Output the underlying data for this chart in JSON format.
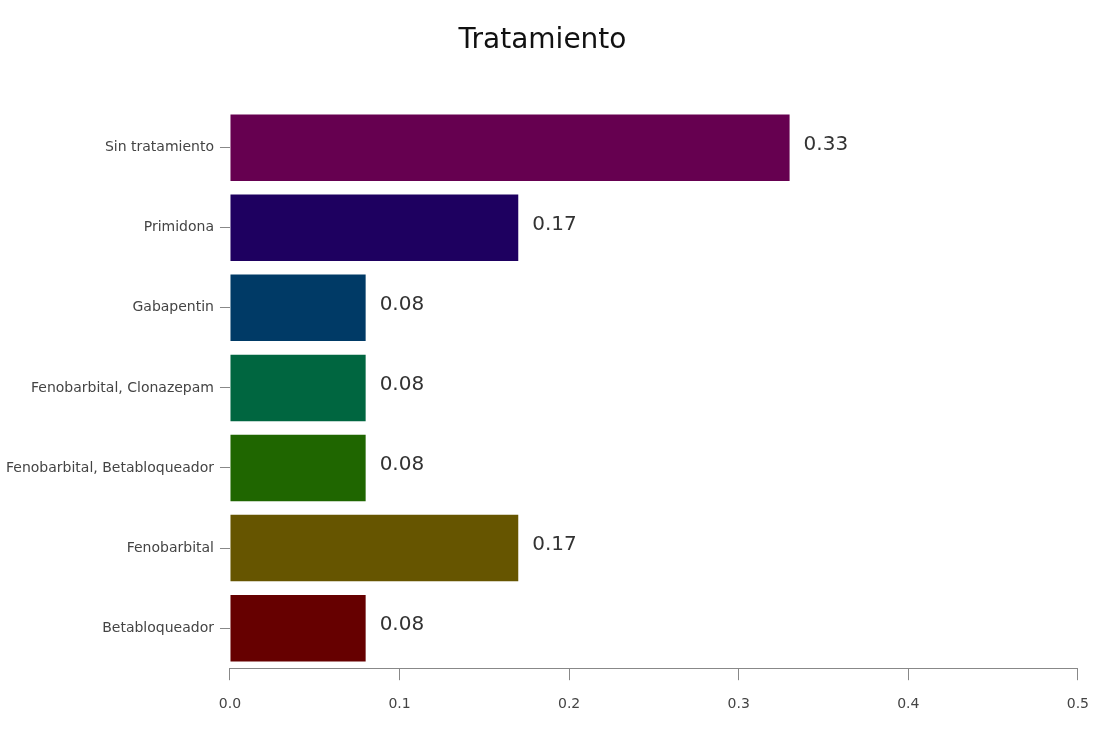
{
  "chart_data": {
    "type": "bar",
    "orientation": "horizontal",
    "title": "Tratamiento",
    "categories": [
      "Sin tratamiento",
      "Primidona",
      "Gabapentin",
      "Fenobarbital, Clonazepam",
      "Fenobarbital, Betabloqueador",
      "Fenobarbital",
      "Betabloqueador"
    ],
    "values": [
      0.33,
      0.17,
      0.08,
      0.08,
      0.08,
      0.17,
      0.08
    ],
    "colors": [
      "#660050",
      "#1e0060",
      "#003a66",
      "#006640",
      "#1f6600",
      "#665500",
      "#660000"
    ],
    "xlim": [
      0,
      0.5
    ],
    "xticks": [
      {
        "value": 0,
        "label": "0.0"
      },
      0.1,
      0.2,
      0.3,
      0.4,
      0.5
    ],
    "data_labels": true,
    "grid": false,
    "legend": false
  }
}
